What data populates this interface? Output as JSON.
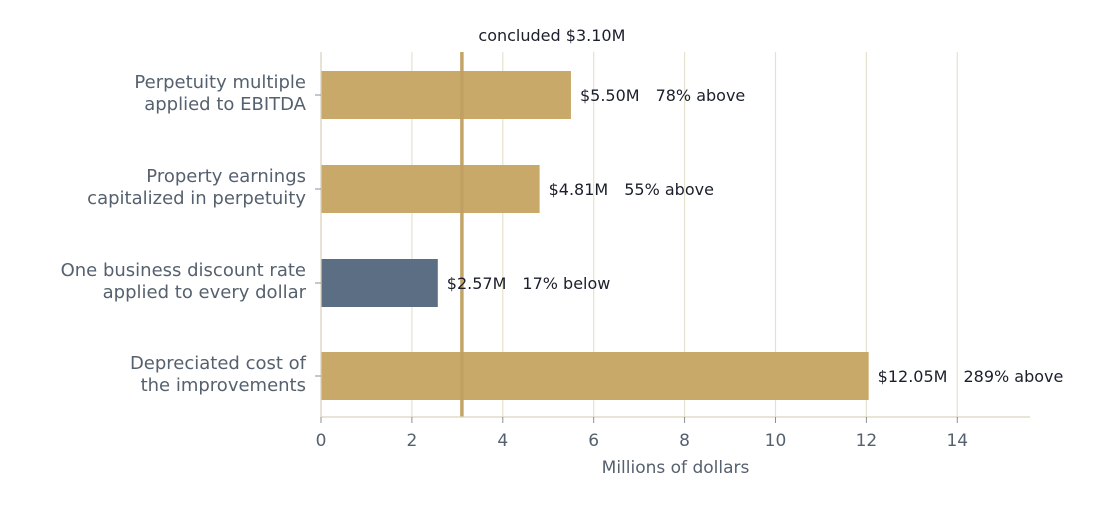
{
  "chart_data": {
    "type": "bar",
    "orientation": "horizontal",
    "categories": [
      [
        "Perpetuity multiple",
        "applied to EBITDA"
      ],
      [
        "Property earnings",
        "capitalized in perpetuity"
      ],
      [
        "One business discount rate",
        "applied to every dollar"
      ],
      [
        "Depreciated cost of",
        "the improvements"
      ]
    ],
    "values": [
      5.5,
      4.81,
      2.57,
      12.05
    ],
    "value_labels": [
      "$5.50M",
      "$4.81M",
      "$2.57M",
      "$12.05M"
    ],
    "comparison_labels": [
      "78% above",
      "55% above",
      "17% below",
      "289% above"
    ],
    "bar_colors": [
      "#c8a96a",
      "#c8a96a",
      "#5b6e84",
      "#c8a96a"
    ],
    "reference_line": {
      "value": 3.1,
      "label": "concluded $3.10M",
      "color": "#c0a062"
    },
    "xlabel": "Millions of dollars",
    "xlim": [
      0,
      15.6
    ],
    "xticks": [
      0,
      2,
      4,
      6,
      8,
      10,
      12,
      14
    ],
    "grid": "vertical",
    "grid_color": "#e6e2cf",
    "axis_color": "#d9d4c0"
  }
}
